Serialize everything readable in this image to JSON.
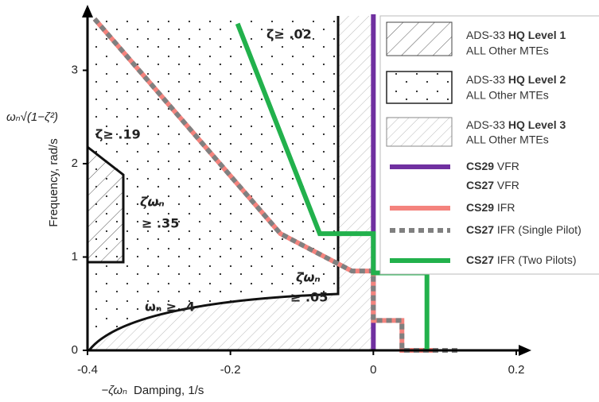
{
  "chart_data": {
    "type": "line",
    "xlabel_symbol": "−ζωₙ",
    "xlabel": "Damping, 1/s",
    "ylabel": "Frequency, rad/s",
    "ylabel_symbol": "ωₙ√(1−ζ²)",
    "xlim": [
      -0.4,
      0.2
    ],
    "xticks": [
      -0.4,
      -0.2,
      0,
      0.2
    ],
    "ylim": [
      0,
      3.6
    ],
    "yticks": [
      0,
      1,
      2,
      3
    ],
    "annotations": [
      "ζ≥ .02",
      "ζ≥ .19",
      "ζωₙ",
      "≥ .35",
      "ζωₙ",
      "≥ .05",
      "ωₙ ≥ .4"
    ],
    "regions": [
      {
        "prefix": "ADS-33",
        "name": "HQ Level 1",
        "note": "ALL Other MTEs"
      },
      {
        "prefix": "ADS-33",
        "name": "HQ Level 2",
        "note": "ALL Other MTEs"
      },
      {
        "prefix": "ADS-33",
        "name": "HQ Level 3",
        "note": "ALL Other MTEs"
      }
    ],
    "legend_only": {
      "name_bold": "CS27",
      "name": "VFR"
    },
    "series": [
      {
        "name_bold": "CS29",
        "name": "VFR",
        "color": "#7030a0",
        "style": "solid",
        "x": [
          0,
          0
        ],
        "values": [
          0,
          3.6
        ]
      },
      {
        "name_bold": "CS29",
        "name": "IFR",
        "color": "#f4837d",
        "style": "solid",
        "x": [
          -0.39,
          -0.13,
          -0.03,
          0,
          0,
          0.04,
          0.04,
          0.09
        ],
        "values": [
          3.55,
          1.25,
          0.85,
          0.85,
          0.32,
          0.32,
          0,
          0
        ]
      },
      {
        "name_bold": "CS27",
        "name": "IFR (Single Pilot)",
        "color": "#808080",
        "style": "dotted",
        "x": [
          -0.39,
          -0.13,
          -0.03,
          0,
          0,
          0.04,
          0.04,
          0.12
        ],
        "values": [
          3.55,
          1.25,
          0.85,
          0.85,
          0.32,
          0.32,
          0,
          0
        ]
      },
      {
        "name_bold": "CS27",
        "name": "IFR (Two Pilots)",
        "color": "#22b14c",
        "style": "solid",
        "x": [
          -0.19,
          -0.075,
          0,
          0,
          0.075,
          0.075
        ],
        "values": [
          3.5,
          1.25,
          1.25,
          0.83,
          0.83,
          0
        ]
      }
    ]
  }
}
